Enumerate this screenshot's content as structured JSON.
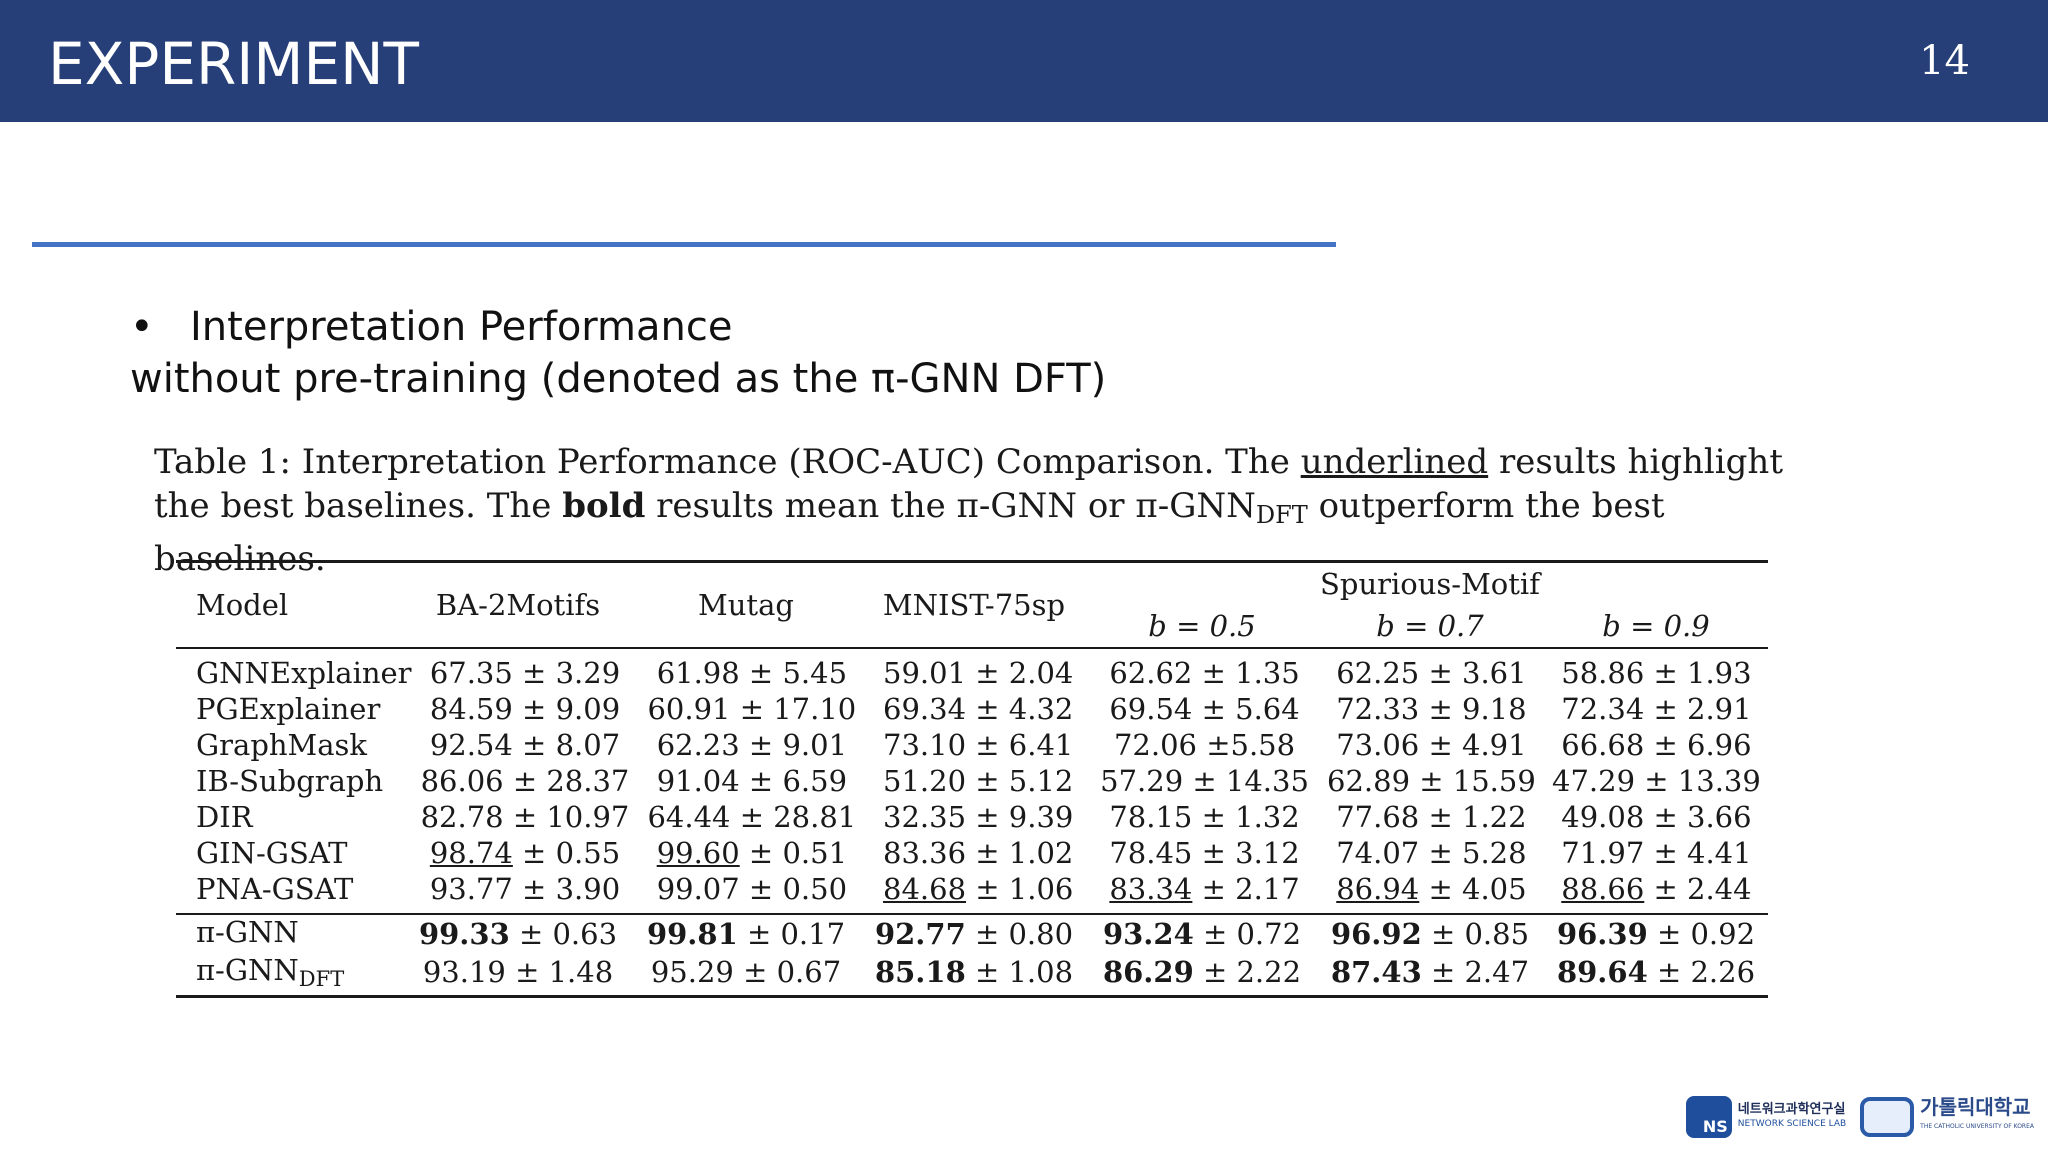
{
  "slide": {
    "title": "EXPERIMENT",
    "page_number": "14",
    "bullet": "•",
    "bullet_text": "Interpretation Performance",
    "subtext": "without pre-training (denoted as the π-GNN DFT)"
  },
  "caption": {
    "part1": "Table 1: Interpretation Performance (ROC-AUC) Comparison. The ",
    "underlined": "underlined",
    "part2": " results highlight the best baselines. The ",
    "bold": "bold",
    "part3": " results mean the π-GNN or π-GNN",
    "sub": "DFT",
    "part4": " outperform the best baselines."
  },
  "table": {
    "headers": {
      "model": "Model",
      "ba2motifs": "BA-2Motifs",
      "mutag": "Mutag",
      "mnist": "MNIST-75sp",
      "spurious_group": "Spurious-Motif",
      "b05": "b = 0.5",
      "b07": "b = 0.7",
      "b09": "b = 0.9"
    },
    "rows": [
      {
        "model": "GNNExplainer",
        "c1": "67.35 ± 3.29",
        "c2": "61.98 ± 5.45",
        "c3": "59.01 ± 2.04",
        "c4": "62.62 ± 1.35",
        "c5": "62.25 ± 3.61",
        "c6": "58.86 ± 1.93"
      },
      {
        "model": "PGExplainer",
        "c1": "84.59 ± 9.09",
        "c2": "60.91 ± 17.10",
        "c3": "69.34 ± 4.32",
        "c4": "69.54 ± 5.64",
        "c5": "72.33 ± 9.18",
        "c6": "72.34 ± 2.91"
      },
      {
        "model": "GraphMask",
        "c1": "92.54 ± 8.07",
        "c2": "62.23 ± 9.01",
        "c3": "73.10 ± 6.41",
        "c4": "72.06 ±5.58",
        "c5": "73.06 ± 4.91",
        "c6": "66.68 ± 6.96"
      },
      {
        "model": "IB-Subgraph",
        "c1": "86.06 ± 28.37",
        "c2": "91.04 ± 6.59",
        "c3": "51.20 ± 5.12",
        "c4": "57.29 ± 14.35",
        "c5": "62.89 ± 15.59",
        "c6": "47.29 ± 13.39"
      },
      {
        "model": "DIR",
        "c1": "82.78 ± 10.97",
        "c2": "64.44 ± 28.81",
        "c3": "32.35 ± 9.39",
        "c4": "78.15 ± 1.32",
        "c5": "77.68 ± 1.22",
        "c6": "49.08 ± 3.66"
      },
      {
        "model": "GIN-GSAT",
        "c1a": "98.74",
        "c1b": " ± 0.55",
        "c2a": "99.60",
        "c2b": " ± 0.51",
        "c3": "83.36 ± 1.02",
        "c4": "78.45 ± 3.12",
        "c5": "74.07 ± 5.28",
        "c6": "71.97 ± 4.41"
      },
      {
        "model": "PNA-GSAT",
        "c1": "93.77 ± 3.90",
        "c2": "99.07 ± 0.50",
        "c3a": "84.68",
        "c3b": " ± 1.06",
        "c4a": "83.34",
        "c4b": " ± 2.17",
        "c5a": "86.94",
        "c5b": " ± 4.05",
        "c6a": "88.66",
        "c6b": " ± 2.44"
      }
    ],
    "ours": [
      {
        "model": "π-GNN",
        "sub": "",
        "c1a": "99.33",
        "c1b": " ± 0.63",
        "c2a": "99.81",
        "c2b": " ± 0.17",
        "c3a": "92.77",
        "c3b": " ± 0.80",
        "c4a": "93.24",
        "c4b": " ± 0.72",
        "c5a": "96.92",
        "c5b": " ± 0.85",
        "c6a": "96.39",
        "c6b": " ± 0.92"
      },
      {
        "model": "π-GNN",
        "sub": "DFT",
        "c1": "93.19 ± 1.48",
        "c2": "95.29 ± 0.67",
        "c3a": "85.18",
        "c3b": " ± 1.08",
        "c4a": "86.29",
        "c4b": " ± 2.22",
        "c5a": "87.43",
        "c5b": " ± 2.47",
        "c6a": "89.64",
        "c6b": " ± 2.26"
      }
    ]
  },
  "logos": {
    "ns_mark": "NS",
    "ns_korean": "네트워크과학연구실",
    "ns_english": "NETWORK SCIENCE LAB",
    "cuk_korean": "가톨릭대학교",
    "cuk_english": "THE CATHOLIC UNIVERSITY OF KOREA"
  }
}
